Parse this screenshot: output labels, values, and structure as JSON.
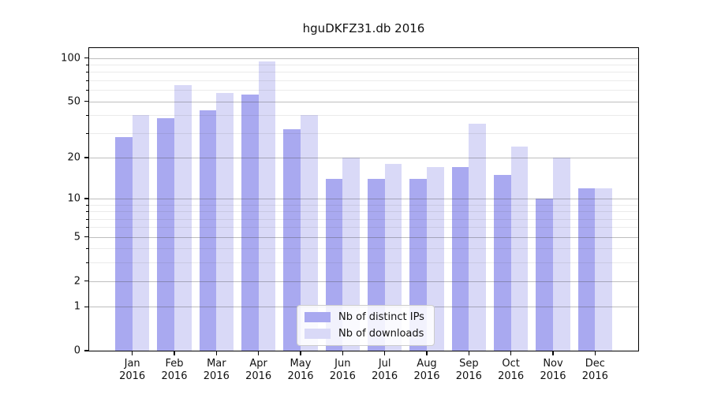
{
  "chart_data": {
    "type": "bar",
    "title": "hguDKFZ31.db 2016",
    "categories": [
      "Jan",
      "Feb",
      "Mar",
      "Apr",
      "May",
      "Jun",
      "Jul",
      "Aug",
      "Sep",
      "Oct",
      "Nov",
      "Dec"
    ],
    "x_year_label": "2016",
    "series": [
      {
        "name": "Nb of distinct IPs",
        "color": "#a9a9f0",
        "values": [
          28,
          38,
          43,
          56,
          32,
          14,
          14,
          14,
          17,
          15,
          10,
          12
        ]
      },
      {
        "name": "Nb of downloads",
        "color": "#d9d9f7",
        "values": [
          40,
          65,
          57,
          95,
          40,
          20,
          18,
          17,
          35,
          24,
          20,
          12
        ]
      }
    ],
    "y_axis": {
      "scale": "log1p",
      "min": 0,
      "max": 117,
      "major_ticks": [
        0,
        1,
        2,
        5,
        10,
        20,
        50,
        100
      ],
      "minor_ticks": [
        3,
        4,
        6,
        7,
        8,
        9,
        30,
        40,
        60,
        70,
        80,
        90
      ]
    },
    "grid": true,
    "grid_above_bars": true,
    "legend_position": "lower center"
  }
}
